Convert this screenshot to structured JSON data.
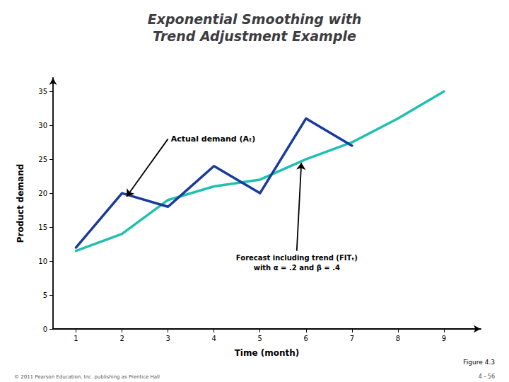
{
  "chart_data": {
    "type": "line",
    "title": "Exponential Smoothing with\nTrend Adjustment Example",
    "x_label": "Time (month)",
    "y_label": "Product demand",
    "series": [
      {
        "x": [
          1,
          2,
          3,
          4,
          5,
          6,
          7,
          8,
          9
        ],
        "values": [
          11.5,
          14,
          19,
          21,
          22,
          25,
          27.5,
          31,
          35
        ],
        "color": "#20c0b0"
      },
      {
        "x": [
          1,
          2,
          3,
          4,
          5,
          6,
          7
        ],
        "values": [
          12,
          20,
          18,
          24,
          20,
          31,
          27
        ],
        "color": "#1a3a9c"
      }
    ],
    "xlim": [
      0.5,
      9.8
    ],
    "xticks": [
      1,
      2,
      3,
      4,
      5,
      6,
      7,
      8,
      9
    ],
    "ylim": [
      0,
      37
    ],
    "yticks": [
      0,
      5,
      10,
      15,
      20,
      25,
      30,
      35
    ],
    "grid": false,
    "annotations": [
      "Actual demand (Aₜ)",
      "Forecast including trend (FITₜ)\nwith α = .2 and β = .4",
      "Figure 4.3",
      "© 2011 Pearson Education, Inc. publishing as Prentice Hall",
      "4 - 56"
    ]
  }
}
